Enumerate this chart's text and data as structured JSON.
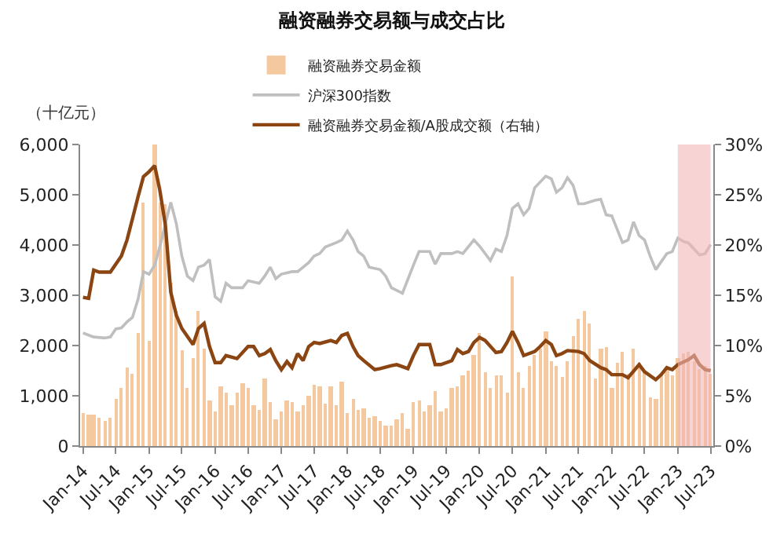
{
  "chart_data": {
    "type": "bar",
    "title": "融资融券交易额与成交占比",
    "ylabel": "（十亿元）",
    "legend": "top",
    "xlim": [
      "2013-12-16",
      "2023-07-16"
    ],
    "xticks": [
      {
        "value": "2014-01",
        "label": "Jan-14"
      },
      {
        "value": "2014-07",
        "label": "Jul-14"
      },
      {
        "value": "2015-01",
        "label": "Jan-15"
      },
      {
        "value": "2015-07",
        "label": "Jul-15"
      },
      {
        "value": "2016-01",
        "label": "Jan-16"
      },
      {
        "value": "2016-07",
        "label": "Jul-16"
      },
      {
        "value": "2017-01",
        "label": "Jan-17"
      },
      {
        "value": "2017-07",
        "label": "Jul-17"
      },
      {
        "value": "2018-01",
        "label": "Jan-18"
      },
      {
        "value": "2018-07",
        "label": "Jul-18"
      },
      {
        "value": "2019-01",
        "label": "Jan-19"
      },
      {
        "value": "2019-07",
        "label": "Jul-19"
      },
      {
        "value": "2020-01",
        "label": "Jan-20"
      },
      {
        "value": "2020-07",
        "label": "Jul-20"
      },
      {
        "value": "2021-01",
        "label": "Jan-21"
      },
      {
        "value": "2021-07",
        "label": "Jul-21"
      },
      {
        "value": "2022-01",
        "label": "Jan-22"
      },
      {
        "value": "2022-07",
        "label": "Jul-22"
      },
      {
        "value": "2023-01",
        "label": "Jan-23"
      },
      {
        "value": "2023-07",
        "label": "Jul-23"
      }
    ],
    "ylim": [
      0,
      6000
    ],
    "yticks": [
      0,
      {
        "value": 1000,
        "label": "1,000"
      },
      {
        "value": 2000,
        "label": "2,000"
      },
      {
        "value": 3000,
        "label": "3,000"
      },
      {
        "value": 4000,
        "label": "4,000"
      },
      {
        "value": 5000,
        "label": "5,000"
      },
      {
        "value": 6000,
        "label": "6,000"
      }
    ],
    "y2lim": [
      0,
      30
    ],
    "y2ticks": [
      {
        "value": 0,
        "label": "0%"
      },
      {
        "value": 5,
        "label": "5%"
      },
      {
        "value": 10,
        "label": "10%"
      },
      {
        "value": 15,
        "label": "15%"
      },
      {
        "value": 20,
        "label": "20%"
      },
      {
        "value": 25,
        "label": "25%"
      },
      {
        "value": 30,
        "label": "30%"
      }
    ],
    "bands": [
      {
        "axis": "x",
        "from": "2023-01",
        "to": "2023-07",
        "color": "#f2b6b6"
      }
    ],
    "series": [
      {
        "name": "融资融券交易金额",
        "color": "#f4c9a0",
        "x": [
          "2014-01",
          "2014-02",
          "2014-03",
          "2014-04",
          "2014-05",
          "2014-06",
          "2014-07",
          "2014-08",
          "2014-09",
          "2014-10",
          "2014-11",
          "2014-12",
          "2015-01",
          "2015-02",
          "2015-03",
          "2015-04",
          "2015-05",
          "2015-06",
          "2015-07",
          "2015-08",
          "2015-09",
          "2015-10",
          "2015-11",
          "2015-12",
          "2016-01",
          "2016-02",
          "2016-03",
          "2016-04",
          "2016-05",
          "2016-06",
          "2016-07",
          "2016-08",
          "2016-09",
          "2016-10",
          "2016-11",
          "2016-12",
          "2017-01",
          "2017-02",
          "2017-03",
          "2017-04",
          "2017-05",
          "2017-06",
          "2017-07",
          "2017-08",
          "2017-09",
          "2017-10",
          "2017-11",
          "2017-12",
          "2018-01",
          "2018-02",
          "2018-03",
          "2018-04",
          "2018-05",
          "2018-06",
          "2018-07",
          "2018-08",
          "2018-09",
          "2018-10",
          "2018-11",
          "2018-12",
          "2019-01",
          "2019-02",
          "2019-03",
          "2019-04",
          "2019-05",
          "2019-06",
          "2019-07",
          "2019-08",
          "2019-09",
          "2019-10",
          "2019-11",
          "2019-12",
          "2020-01",
          "2020-02",
          "2020-03",
          "2020-04",
          "2020-05",
          "2020-06",
          "2020-07",
          "2020-08",
          "2020-09",
          "2020-10",
          "2020-11",
          "2020-12",
          "2021-01",
          "2021-02",
          "2021-03",
          "2021-04",
          "2021-05",
          "2021-06",
          "2021-07",
          "2021-08",
          "2021-09",
          "2021-10",
          "2021-11",
          "2021-12",
          "2022-01",
          "2022-02",
          "2022-03",
          "2022-04",
          "2022-05",
          "2022-06",
          "2022-07",
          "2022-08",
          "2022-09",
          "2022-10",
          "2022-11",
          "2022-12",
          "2023-01",
          "2023-02",
          "2023-03",
          "2023-04",
          "2023-05",
          "2023-06",
          "2023-07"
        ],
        "values": [
          650,
          640,
          620,
          570,
          500,
          560,
          950,
          1170,
          1550,
          1450,
          2250,
          4850,
          2100,
          6000,
          4850,
          4800,
          3250,
          2700,
          1900,
          1150,
          1750,
          2700,
          1950,
          900,
          680,
          1200,
          1050,
          800,
          1050,
          1250,
          1150,
          800,
          720,
          1350,
          870,
          520,
          700,
          920,
          870,
          700,
          800,
          1000,
          1220,
          1200,
          850,
          1200,
          820,
          1280,
          650,
          950,
          720,
          760,
          550,
          600,
          500,
          410,
          400,
          520,
          660,
          350,
          880,
          900,
          700,
          820,
          1100,
          700,
          750,
          1160,
          1200,
          1400,
          1500,
          1800,
          2250,
          1480,
          1160,
          1400,
          1400,
          1050,
          3380,
          1480,
          1150,
          1600,
          1800,
          1930,
          2290,
          1700,
          1600,
          1380,
          1700,
          2200,
          2520,
          2700,
          2430,
          1340,
          1930,
          1970,
          1160,
          1650,
          1880,
          1430,
          1930,
          1650,
          1480,
          980,
          930,
          1430,
          1560,
          1400,
          1750,
          1840,
          1880,
          1700,
          1520,
          1600,
          1430
        ]
      },
      {
        "name": "沪深300指数",
        "type": "line",
        "color": "#bfbfbf",
        "x": [
          "2014-01",
          "2014-03",
          "2014-05",
          "2014-06",
          "2014-07",
          "2014-08",
          "2014-09",
          "2014-10",
          "2014-11",
          "2014-12",
          "2015-01",
          "2015-02",
          "2015-03",
          "2015-04",
          "2015-05",
          "2015-06",
          "2015-07",
          "2015-08",
          "2015-09",
          "2015-10",
          "2015-11",
          "2015-12",
          "2016-01",
          "2016-02",
          "2016-03",
          "2016-04",
          "2016-06",
          "2016-07",
          "2016-09",
          "2016-10",
          "2016-11",
          "2016-12",
          "2017-01",
          "2017-03",
          "2017-04",
          "2017-06",
          "2017-07",
          "2017-08",
          "2017-09",
          "2017-11",
          "2017-12",
          "2018-01",
          "2018-02",
          "2018-03",
          "2018-04",
          "2018-05",
          "2018-07",
          "2018-08",
          "2018-09",
          "2018-11",
          "2019-01",
          "2019-02",
          "2019-04",
          "2019-05",
          "2019-06",
          "2019-08",
          "2019-09",
          "2019-10",
          "2019-12",
          "2020-01",
          "2020-03",
          "2020-04",
          "2020-05",
          "2020-06",
          "2020-07",
          "2020-08",
          "2020-09",
          "2020-10",
          "2020-11",
          "2021-01",
          "2021-02",
          "2021-03",
          "2021-04",
          "2021-05",
          "2021-06",
          "2021-07",
          "2021-08",
          "2021-10",
          "2021-11",
          "2021-12",
          "2022-01",
          "2022-03",
          "2022-04",
          "2022-05",
          "2022-06",
          "2022-07",
          "2022-08",
          "2022-09",
          "2022-11",
          "2022-12",
          "2023-01",
          "2023-02",
          "2023-03",
          "2023-05",
          "2023-06",
          "2023-07"
        ],
        "values": [
          2250,
          2170,
          2150,
          2170,
          2330,
          2350,
          2470,
          2560,
          2920,
          3470,
          3420,
          3600,
          3960,
          4420,
          4850,
          4420,
          3780,
          3380,
          3290,
          3560,
          3600,
          3710,
          2970,
          2880,
          3240,
          3150,
          3150,
          3290,
          3240,
          3380,
          3560,
          3330,
          3420,
          3470,
          3470,
          3650,
          3780,
          3830,
          3960,
          4050,
          4100,
          4280,
          4100,
          3870,
          3780,
          3560,
          3510,
          3380,
          3150,
          3040,
          3600,
          3870,
          3870,
          3620,
          3830,
          3830,
          3870,
          3830,
          4100,
          3980,
          3690,
          3920,
          3870,
          4190,
          4730,
          4820,
          4600,
          4730,
          5140,
          5370,
          5320,
          5050,
          5140,
          5340,
          5190,
          4820,
          4820,
          4890,
          4910,
          4600,
          4580,
          4050,
          4100,
          4460,
          4190,
          4100,
          3780,
          3510,
          3830,
          3870,
          4140,
          4070,
          4040,
          3800,
          3830,
          4010
        ]
      },
      {
        "name": "融资融券交易金额/A股成交额（右轴）",
        "type": "line",
        "axis": "y2",
        "color": "#8b4513",
        "x": [
          "2014-01",
          "2014-02",
          "2014-03",
          "2014-04",
          "2014-06",
          "2014-08",
          "2014-09",
          "2014-10",
          "2014-11",
          "2014-12",
          "2015-01",
          "2015-02",
          "2015-03",
          "2015-04",
          "2015-05",
          "2015-06",
          "2015-07",
          "2015-09",
          "2015-10",
          "2015-11",
          "2015-12",
          "2016-01",
          "2016-02",
          "2016-03",
          "2016-05",
          "2016-07",
          "2016-08",
          "2016-09",
          "2016-10",
          "2016-11",
          "2016-12",
          "2017-01",
          "2017-02",
          "2017-03",
          "2017-04",
          "2017-05",
          "2017-06",
          "2017-07",
          "2017-08",
          "2017-10",
          "2017-11",
          "2017-12",
          "2018-01",
          "2018-02",
          "2018-03",
          "2018-04",
          "2018-06",
          "2018-07",
          "2018-09",
          "2018-10",
          "2018-12",
          "2019-01",
          "2019-02",
          "2019-04",
          "2019-05",
          "2019-06",
          "2019-08",
          "2019-09",
          "2019-10",
          "2019-11",
          "2019-12",
          "2020-01",
          "2020-02",
          "2020-04",
          "2020-05",
          "2020-06",
          "2020-07",
          "2020-08",
          "2020-09",
          "2020-11",
          "2020-12",
          "2021-01",
          "2021-02",
          "2021-03",
          "2021-04",
          "2021-05",
          "2021-07",
          "2021-08",
          "2021-09",
          "2021-11",
          "2021-12",
          "2022-01",
          "2022-03",
          "2022-04",
          "2022-06",
          "2022-07",
          "2022-09",
          "2022-10",
          "2022-11",
          "2022-12",
          "2023-01",
          "2023-03",
          "2023-04",
          "2023-05",
          "2023-06",
          "2023-07"
        ],
        "values": [
          14.8,
          14.7,
          17.5,
          17.3,
          17.3,
          18.9,
          20.5,
          22.6,
          24.8,
          26.8,
          27.3,
          27.9,
          25.5,
          22.0,
          15.3,
          13.0,
          11.7,
          10.1,
          11.7,
          12.2,
          9.9,
          8.3,
          8.3,
          9.0,
          8.7,
          9.9,
          9.9,
          9.0,
          9.2,
          9.6,
          8.5,
          7.6,
          8.4,
          7.8,
          9.2,
          8.5,
          9.9,
          10.3,
          10.2,
          10.5,
          10.3,
          11.0,
          11.2,
          9.9,
          9.0,
          8.5,
          7.6,
          7.7,
          8.0,
          8.1,
          7.7,
          9.0,
          10.1,
          10.1,
          8.1,
          8.1,
          8.5,
          9.6,
          9.2,
          9.4,
          10.3,
          10.8,
          10.5,
          9.3,
          9.4,
          10.3,
          11.4,
          10.3,
          9.0,
          9.4,
          9.9,
          10.5,
          10.1,
          9.0,
          9.2,
          9.5,
          9.4,
          9.2,
          8.5,
          7.8,
          7.6,
          7.1,
          7.1,
          6.8,
          8.1,
          7.4,
          6.6,
          7.1,
          7.8,
          7.6,
          8.1,
          8.6,
          9.0,
          8.1,
          7.6,
          7.5
        ]
      }
    ]
  }
}
